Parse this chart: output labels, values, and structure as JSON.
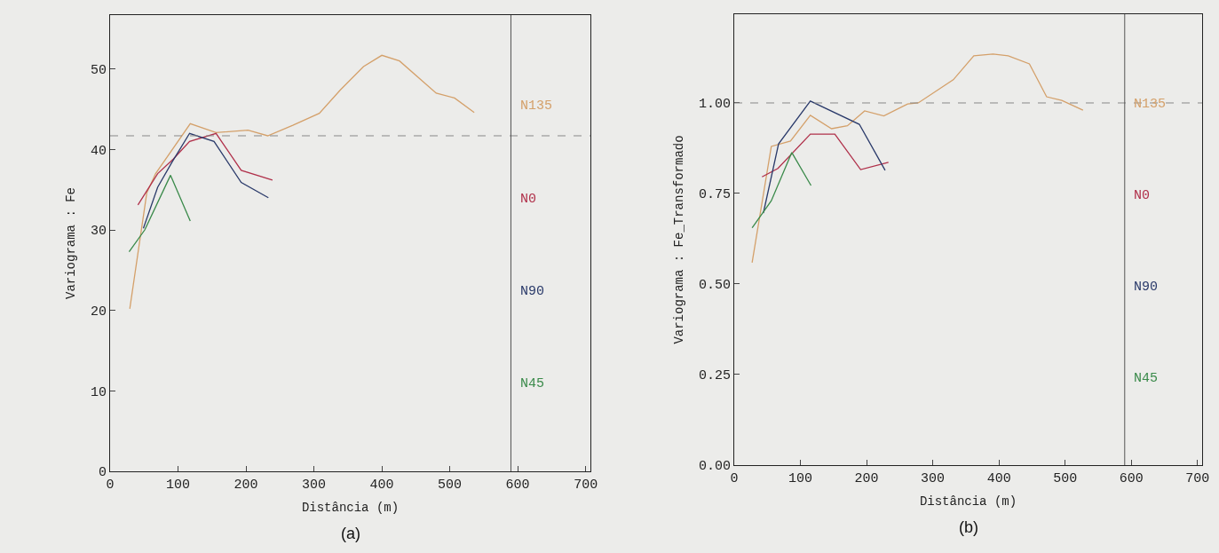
{
  "chart_data": [
    {
      "type": "line",
      "xlabel": "Distância (m)",
      "ylabel": "Variograma : Fe",
      "annotations": [
        "(a)"
      ],
      "xlim": [
        0,
        707
      ],
      "xticks": [
        0,
        100,
        200,
        300,
        400,
        500,
        600,
        700
      ],
      "ylim": [
        0,
        56.7
      ],
      "yticks": [
        0,
        10,
        20,
        30,
        40,
        50
      ],
      "ref_lines": [
        {
          "axis": "y",
          "value": 41.7,
          "color": "#888888",
          "line_style": "dashed"
        },
        {
          "axis": "x",
          "value": 590,
          "color": "#555555",
          "line_style": "solid"
        }
      ],
      "series": [
        {
          "name": "N135",
          "color": "#d4a06a",
          "x": [
            29,
            54,
            67,
            118,
            156,
            203,
            232,
            269,
            308,
            339,
            373,
            400,
            426,
            480,
            507,
            536
          ],
          "values": [
            20.2,
            34.6,
            37,
            43.2,
            42.1,
            42.4,
            41.7,
            43,
            44.5,
            47.4,
            50.3,
            51.7,
            51,
            47,
            46.4,
            44.6
          ]
        },
        {
          "name": "N0",
          "color": "#b0304a",
          "x": [
            41,
            70,
            93,
            117,
            156,
            193,
            239
          ],
          "values": [
            33.1,
            37,
            38.8,
            41,
            42,
            37.4,
            36.2
          ]
        },
        {
          "name": "N90",
          "color": "#2a3a6a",
          "x": [
            49,
            70,
            91,
            117,
            153,
            193,
            233
          ],
          "values": [
            30.2,
            35.3,
            38.4,
            42,
            41,
            35.9,
            34
          ]
        },
        {
          "name": "N45",
          "color": "#3a8a4a",
          "x": [
            28,
            51,
            89,
            118
          ],
          "values": [
            27.3,
            30,
            36.8,
            31.1
          ]
        }
      ]
    },
    {
      "type": "line",
      "xlabel": "Distância (m)",
      "ylabel": "Variograma : Fe_Transformado",
      "annotations": [
        "(b)"
      ],
      "xlim": [
        0,
        707
      ],
      "xticks": [
        0,
        100,
        200,
        300,
        400,
        500,
        600,
        700
      ],
      "ylim": [
        0,
        1.245
      ],
      "yticks": [
        {
          "value": 0,
          "label": "0.00"
        },
        {
          "value": 0.25,
          "label": "0.25"
        },
        {
          "value": 0.5,
          "label": "0.50"
        },
        {
          "value": 0.75,
          "label": "0.75"
        },
        {
          "value": 1,
          "label": "1.00"
        }
      ],
      "ref_lines": [
        {
          "axis": "y",
          "value": 1,
          "color": "#888888",
          "line_style": "dashed"
        },
        {
          "axis": "x",
          "value": 590,
          "color": "#555555",
          "line_style": "solid"
        }
      ],
      "series": [
        {
          "name": "N135",
          "color": "#d4a06a",
          "x": [
            27,
            56,
            85,
            115,
            147,
            171,
            197,
            226,
            262,
            278,
            331,
            362,
            391,
            414,
            446,
            472,
            495,
            527
          ],
          "values": [
            0.559,
            0.88,
            0.895,
            0.966,
            0.929,
            0.937,
            0.978,
            0.964,
            0.997,
            1,
            1.064,
            1.13,
            1.135,
            1.13,
            1.108,
            1.017,
            1.007,
            0.98
          ]
        },
        {
          "name": "N0",
          "color": "#b0304a",
          "x": [
            42,
            66,
            115,
            152,
            191,
            233
          ],
          "values": [
            0.796,
            0.819,
            0.914,
            0.914,
            0.816,
            0.836
          ]
        },
        {
          "name": "N90",
          "color": "#2a3a6a",
          "x": [
            44,
            67,
            115,
            189,
            228
          ],
          "values": [
            0.696,
            0.887,
            1.005,
            0.941,
            0.814
          ]
        },
        {
          "name": "N45",
          "color": "#3a8a4a",
          "x": [
            27,
            56,
            87,
            116
          ],
          "values": [
            0.655,
            0.73,
            0.863,
            0.772
          ]
        }
      ]
    }
  ]
}
